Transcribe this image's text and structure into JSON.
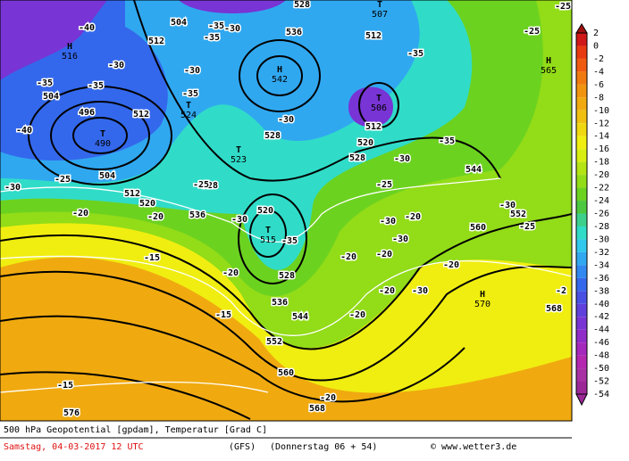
{
  "colorbar": {
    "labels": [
      "2",
      "0",
      "-2",
      "-4",
      "-6",
      "-8",
      "-10",
      "-12",
      "-14",
      "-16",
      "-18",
      "-20",
      "-22",
      "-24",
      "-26",
      "-28",
      "-30",
      "-32",
      "-34",
      "-36",
      "-38",
      "-40",
      "-42",
      "-44",
      "-46",
      "-48",
      "-50",
      "-52",
      "-54"
    ],
    "colors": [
      "#a01010",
      "#d01818",
      "#e83a10",
      "#f05a10",
      "#f07a10",
      "#f09410",
      "#f0aa10",
      "#f0c010",
      "#f0d810",
      "#f0ee10",
      "#d8ee10",
      "#b4e414",
      "#92dc18",
      "#6cd220",
      "#4cc840",
      "#3cd08c",
      "#30dcc8",
      "#30c8ec",
      "#30a8f0",
      "#3088f0",
      "#3468ec",
      "#4850e4",
      "#6040dc",
      "#7834d4",
      "#902cc8",
      "#a428bc",
      "#b428b0",
      "#a830a4",
      "#9c2898"
    ]
  },
  "map": {
    "centers": [
      {
        "letter": "H",
        "value": "516"
      },
      {
        "letter": "H",
        "value": "542"
      },
      {
        "letter": "T",
        "value": "490"
      },
      {
        "letter": "T",
        "value": "506"
      },
      {
        "letter": "T",
        "value": "523"
      },
      {
        "letter": "T",
        "value": "515"
      },
      {
        "letter": "H",
        "value": "565"
      },
      {
        "letter": "T",
        "value": "524"
      },
      {
        "letter": "H",
        "value": "570"
      },
      {
        "letter": "T",
        "value": "507"
      }
    ],
    "labels": [
      "504",
      "512",
      "496",
      "504",
      "512",
      "504",
      "512",
      "520",
      "528",
      "536",
      "528",
      "536",
      "528",
      "520",
      "512",
      "512",
      "528",
      "544",
      "552",
      "560",
      "568",
      "528",
      "536",
      "544",
      "552",
      "560",
      "568",
      "576",
      "520",
      "-40",
      "-30",
      "-35",
      "-35",
      "-40",
      "-30",
      "-35",
      "-30",
      "-35",
      "-35",
      "-30",
      "-25",
      "-25",
      "-25",
      "-30",
      "-20",
      "-20",
      "-15",
      "-15",
      "-15",
      "-20",
      "-30",
      "-35",
      "-30",
      "-20",
      "-30",
      "-20",
      "-20",
      "-20",
      "-30",
      "-20",
      "-20",
      "-20",
      "-25",
      "-25",
      "-25",
      "-30",
      "-2",
      "-30",
      "-35",
      "-35"
    ]
  },
  "footer": {
    "line1": "500 hPa Geopotential [gpdam], Temperatur [Grad C]",
    "date": "Samstag, 04-03-2017  12 UTC",
    "model": "(GFS)",
    "run": "(Donnerstag 06 + 54)",
    "credit": "© www.wetter3.de"
  }
}
